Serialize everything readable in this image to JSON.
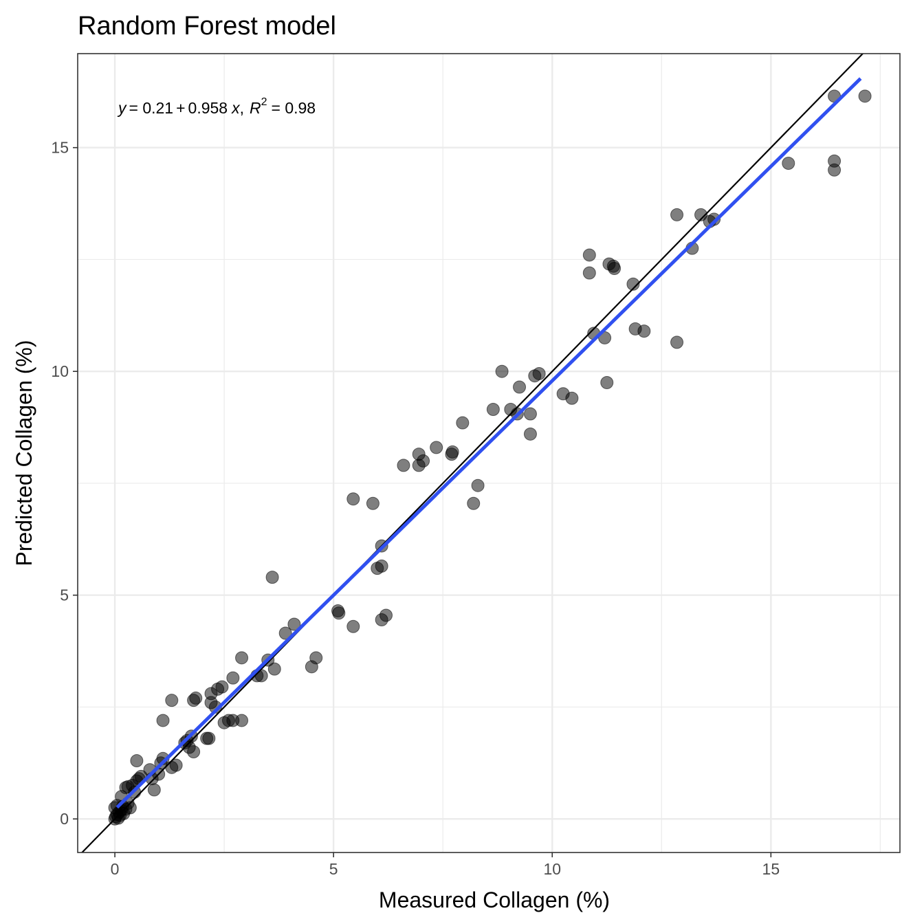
{
  "chart_data": {
    "type": "scatter",
    "title": "Random Forest model",
    "xlabel": "Measured Collagen (%)",
    "ylabel": "Predicted Collagen (%)",
    "xlim": [
      -0.85,
      17.95
    ],
    "ylim": [
      -0.75,
      17.1
    ],
    "x_ticks": [
      0,
      5,
      10,
      15
    ],
    "y_ticks": [
      0,
      5,
      10,
      15
    ],
    "grid": true,
    "annotation": {
      "y_sym": "y",
      "intercept": "= 0.21",
      "plus": "+",
      "slope": "0.958",
      "x_sym": "x",
      "sep": ",",
      "r_sym": "R",
      "r_sup": "2",
      "r_val": "= 0.98"
    },
    "reference_line": {
      "intercept": 0,
      "slope": 1
    },
    "fit_line": {
      "intercept": 0.21,
      "slope": 0.958,
      "x_range": [
        0.05,
        17.05
      ]
    },
    "colors": {
      "points": "#000000",
      "fit": "#3050f0",
      "reference": "#000000",
      "grid": "#ebebeb",
      "panel_border": "#333333"
    },
    "points": [
      {
        "x": 0.0,
        "y": 0.0
      },
      {
        "x": 0.02,
        "y": 0.05
      },
      {
        "x": 0.05,
        "y": 0.1
      },
      {
        "x": 0.08,
        "y": 0.02
      },
      {
        "x": 0.1,
        "y": 0.15
      },
      {
        "x": 0.12,
        "y": 0.08
      },
      {
        "x": 0.15,
        "y": 0.2
      },
      {
        "x": 0.2,
        "y": 0.12
      },
      {
        "x": 0.0,
        "y": 0.25
      },
      {
        "x": 0.05,
        "y": 0.3
      },
      {
        "x": 0.18,
        "y": 0.28
      },
      {
        "x": 0.25,
        "y": 0.22
      },
      {
        "x": 0.3,
        "y": 0.35
      },
      {
        "x": 0.35,
        "y": 0.25
      },
      {
        "x": 0.15,
        "y": 0.5
      },
      {
        "x": 0.25,
        "y": 0.7
      },
      {
        "x": 0.3,
        "y": 0.72
      },
      {
        "x": 0.4,
        "y": 0.75
      },
      {
        "x": 0.5,
        "y": 0.85
      },
      {
        "x": 0.55,
        "y": 0.9
      },
      {
        "x": 0.6,
        "y": 0.95
      },
      {
        "x": 0.45,
        "y": 0.6
      },
      {
        "x": 0.5,
        "y": 1.3
      },
      {
        "x": 0.8,
        "y": 1.1
      },
      {
        "x": 0.85,
        "y": 0.9
      },
      {
        "x": 0.9,
        "y": 0.65
      },
      {
        "x": 1.0,
        "y": 1.0
      },
      {
        "x": 1.05,
        "y": 1.25
      },
      {
        "x": 1.1,
        "y": 1.35
      },
      {
        "x": 1.1,
        "y": 2.2
      },
      {
        "x": 1.3,
        "y": 1.15
      },
      {
        "x": 1.3,
        "y": 2.65
      },
      {
        "x": 1.4,
        "y": 1.2
      },
      {
        "x": 1.6,
        "y": 1.7
      },
      {
        "x": 1.65,
        "y": 1.75
      },
      {
        "x": 1.7,
        "y": 1.6
      },
      {
        "x": 1.75,
        "y": 1.85
      },
      {
        "x": 1.8,
        "y": 1.5
      },
      {
        "x": 1.8,
        "y": 2.65
      },
      {
        "x": 1.85,
        "y": 2.7
      },
      {
        "x": 2.1,
        "y": 1.8
      },
      {
        "x": 2.15,
        "y": 1.8
      },
      {
        "x": 2.2,
        "y": 2.6
      },
      {
        "x": 2.2,
        "y": 2.8
      },
      {
        "x": 2.35,
        "y": 2.9
      },
      {
        "x": 2.3,
        "y": 2.5
      },
      {
        "x": 2.45,
        "y": 2.95
      },
      {
        "x": 2.5,
        "y": 2.15
      },
      {
        "x": 2.6,
        "y": 2.2
      },
      {
        "x": 2.7,
        "y": 2.2
      },
      {
        "x": 2.7,
        "y": 3.15
      },
      {
        "x": 2.9,
        "y": 2.2
      },
      {
        "x": 2.9,
        "y": 3.6
      },
      {
        "x": 3.25,
        "y": 3.2
      },
      {
        "x": 3.35,
        "y": 3.2
      },
      {
        "x": 3.5,
        "y": 3.55
      },
      {
        "x": 3.6,
        "y": 5.4
      },
      {
        "x": 3.65,
        "y": 3.35
      },
      {
        "x": 3.9,
        "y": 4.15
      },
      {
        "x": 4.1,
        "y": 4.35
      },
      {
        "x": 4.5,
        "y": 3.4
      },
      {
        "x": 4.6,
        "y": 3.6
      },
      {
        "x": 5.1,
        "y": 4.65
      },
      {
        "x": 5.12,
        "y": 4.6
      },
      {
        "x": 5.45,
        "y": 7.15
      },
      {
        "x": 5.45,
        "y": 4.3
      },
      {
        "x": 5.9,
        "y": 7.05
      },
      {
        "x": 6.0,
        "y": 5.6
      },
      {
        "x": 6.1,
        "y": 5.65
      },
      {
        "x": 6.1,
        "y": 6.1
      },
      {
        "x": 6.1,
        "y": 4.45
      },
      {
        "x": 6.2,
        "y": 4.55
      },
      {
        "x": 6.6,
        "y": 7.9
      },
      {
        "x": 6.95,
        "y": 8.15
      },
      {
        "x": 6.95,
        "y": 7.9
      },
      {
        "x": 7.05,
        "y": 8.0
      },
      {
        "x": 7.35,
        "y": 8.3
      },
      {
        "x": 7.7,
        "y": 8.15
      },
      {
        "x": 7.72,
        "y": 8.2
      },
      {
        "x": 7.95,
        "y": 8.85
      },
      {
        "x": 8.2,
        "y": 7.05
      },
      {
        "x": 8.3,
        "y": 7.45
      },
      {
        "x": 8.65,
        "y": 9.15
      },
      {
        "x": 8.85,
        "y": 10.0
      },
      {
        "x": 9.05,
        "y": 9.15
      },
      {
        "x": 9.2,
        "y": 9.05
      },
      {
        "x": 9.25,
        "y": 9.65
      },
      {
        "x": 9.5,
        "y": 9.05
      },
      {
        "x": 9.5,
        "y": 8.6
      },
      {
        "x": 9.6,
        "y": 9.9
      },
      {
        "x": 9.7,
        "y": 9.95
      },
      {
        "x": 10.25,
        "y": 9.5
      },
      {
        "x": 10.45,
        "y": 9.4
      },
      {
        "x": 10.85,
        "y": 12.6
      },
      {
        "x": 10.85,
        "y": 12.2
      },
      {
        "x": 10.95,
        "y": 10.85
      },
      {
        "x": 11.2,
        "y": 10.75
      },
      {
        "x": 11.25,
        "y": 9.75
      },
      {
        "x": 11.3,
        "y": 12.4
      },
      {
        "x": 11.4,
        "y": 12.35
      },
      {
        "x": 11.42,
        "y": 12.3
      },
      {
        "x": 11.85,
        "y": 11.95
      },
      {
        "x": 11.9,
        "y": 10.95
      },
      {
        "x": 12.1,
        "y": 10.9
      },
      {
        "x": 12.85,
        "y": 13.5
      },
      {
        "x": 12.85,
        "y": 10.65
      },
      {
        "x": 13.2,
        "y": 12.75
      },
      {
        "x": 13.4,
        "y": 13.5
      },
      {
        "x": 13.6,
        "y": 13.35
      },
      {
        "x": 13.7,
        "y": 13.4
      },
      {
        "x": 15.4,
        "y": 14.65
      },
      {
        "x": 16.45,
        "y": 16.15
      },
      {
        "x": 16.45,
        "y": 14.7
      },
      {
        "x": 16.45,
        "y": 14.5
      },
      {
        "x": 17.15,
        "y": 16.15
      }
    ]
  }
}
